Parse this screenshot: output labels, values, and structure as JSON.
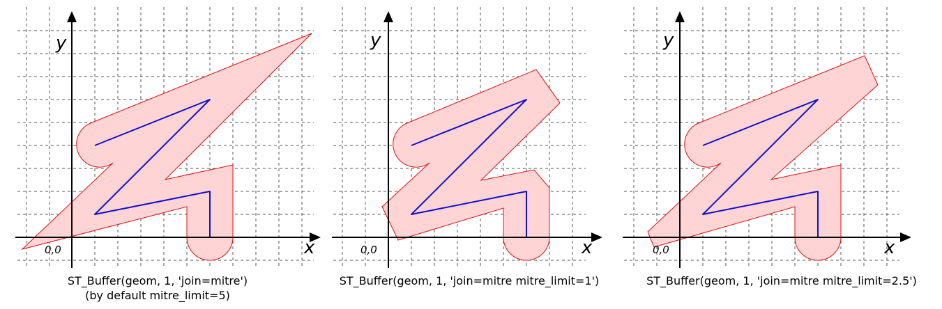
{
  "panels": [
    {
      "x_label": "x",
      "y_label": "y",
      "origin_label": "0,0",
      "caption_line1": "ST_Buffer(geom, 1, 'join=mitre')",
      "caption_line2": "(by default mitre_limit=5)"
    },
    {
      "x_label": "x",
      "y_label": "y",
      "origin_label": "0,0",
      "caption_line1": "ST_Buffer(geom, 1, 'join=mitre mitre_limit=1')",
      "caption_line2": ""
    },
    {
      "x_label": "x",
      "y_label": "y",
      "origin_label": "0,0",
      "caption_line1": "ST_Buffer(geom, 1, 'join=mitre mitre_limit=2.5')",
      "caption_line2": ""
    }
  ],
  "colors": {
    "buffer_fill": "#ffd4d4",
    "buffer_stroke": "#e01010",
    "geometry_stroke": "#1010d0",
    "grid": "#555555",
    "axis": "#000000"
  }
}
